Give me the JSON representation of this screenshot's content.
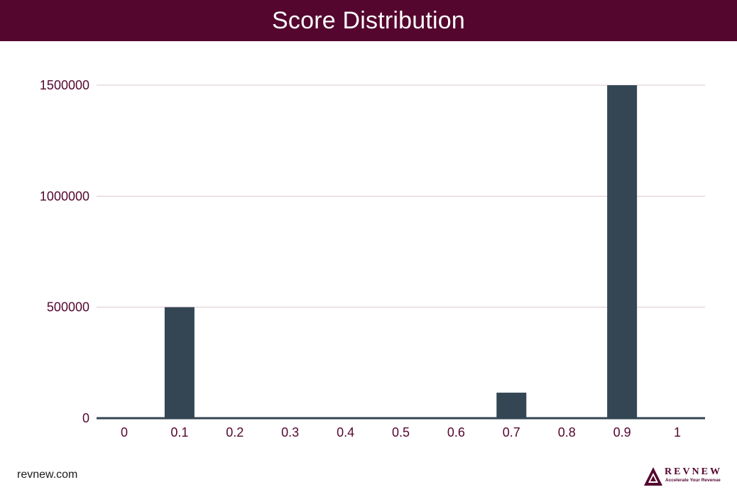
{
  "header": {
    "title": "Score Distribution"
  },
  "colors": {
    "header_bg": "#54062e",
    "bar": "#344654",
    "axis_text": "#54062e",
    "grid": "#d8c8cf",
    "baseline": "#344654"
  },
  "chart_data": {
    "type": "bar",
    "title": "Score Distribution",
    "xlabel": "",
    "ylabel": "",
    "categories": [
      "0",
      "0.1",
      "0.2",
      "0.3",
      "0.4",
      "0.5",
      "0.6",
      "0.7",
      "0.8",
      "0.9",
      "1"
    ],
    "values": [
      0,
      500000,
      0,
      0,
      0,
      0,
      0,
      115000,
      0,
      1500000,
      0
    ],
    "ylim": [
      0,
      1500000
    ],
    "yticks": [
      0,
      500000,
      1000000,
      1500000
    ],
    "grid": true,
    "legend": "none"
  },
  "footer": {
    "site": "revnew.com",
    "logo_word": "REVNEW",
    "logo_tagline": "Accelerate Your Revenue",
    "logo_icon": "mountain-triangle-icon"
  }
}
